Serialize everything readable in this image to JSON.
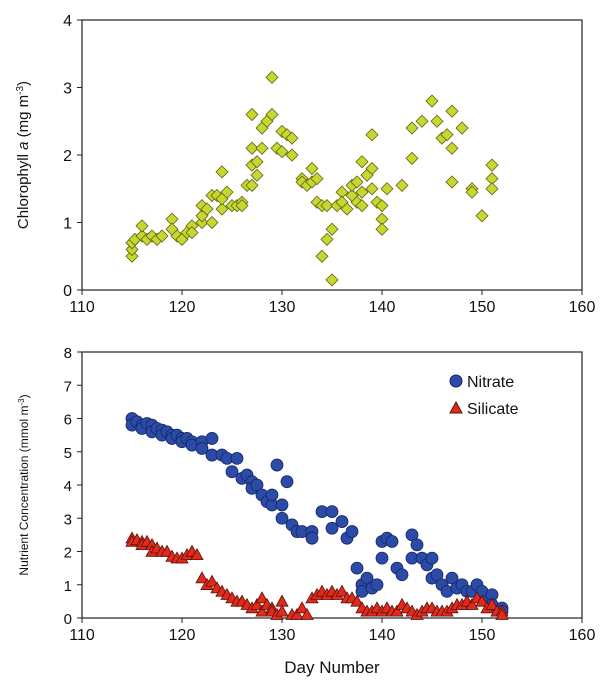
{
  "chart_data": [
    {
      "type": "scatter",
      "ylabel": "Chlorophyll a (mg m-3)",
      "ylabel_parts": [
        "Chlorophyll ",
        "a",
        " (mg m",
        "-3",
        ")"
      ],
      "xlabel": "",
      "xlim": [
        110,
        160
      ],
      "ylim": [
        0,
        4
      ],
      "x_ticks": [
        110,
        120,
        130,
        140,
        150,
        160
      ],
      "y_ticks": [
        0,
        1,
        2,
        3,
        4
      ],
      "grid": false,
      "series": [
        {
          "marker": "diamond",
          "color": "#c8d630",
          "stroke": "#5a6410",
          "points": [
            [
              115,
              0.5
            ],
            [
              115,
              0.6
            ],
            [
              115,
              0.7
            ],
            [
              115.3,
              0.75
            ],
            [
              116,
              0.8
            ],
            [
              116,
              0.95
            ],
            [
              116.5,
              0.75
            ],
            [
              117,
              0.8
            ],
            [
              117.5,
              0.75
            ],
            [
              118,
              0.8
            ],
            [
              119,
              1.05
            ],
            [
              119,
              0.9
            ],
            [
              119.5,
              0.8
            ],
            [
              120,
              0.75
            ],
            [
              120.5,
              0.85
            ],
            [
              121,
              0.95
            ],
            [
              121,
              0.85
            ],
            [
              122,
              1.0
            ],
            [
              122,
              1.1
            ],
            [
              122,
              1.25
            ],
            [
              122.5,
              1.2
            ],
            [
              123,
              1.0
            ],
            [
              123,
              1.4
            ],
            [
              123.5,
              1.4
            ],
            [
              124,
              1.2
            ],
            [
              124,
              1.75
            ],
            [
              124,
              1.35
            ],
            [
              124.5,
              1.45
            ],
            [
              125,
              1.25
            ],
            [
              125.5,
              1.25
            ],
            [
              126,
              1.3
            ],
            [
              126,
              1.25
            ],
            [
              126.5,
              1.55
            ],
            [
              127,
              1.55
            ],
            [
              127,
              1.85
            ],
            [
              127,
              2.1
            ],
            [
              127,
              2.6
            ],
            [
              127.5,
              1.7
            ],
            [
              127.5,
              1.9
            ],
            [
              128,
              2.1
            ],
            [
              128,
              2.4
            ],
            [
              128.5,
              2.5
            ],
            [
              129,
              2.6
            ],
            [
              129,
              3.15
            ],
            [
              129.5,
              2.1
            ],
            [
              130,
              2.35
            ],
            [
              130,
              2.05
            ],
            [
              130.5,
              2.3
            ],
            [
              131,
              2.25
            ],
            [
              131,
              2.0
            ],
            [
              132,
              1.65
            ],
            [
              132,
              1.6
            ],
            [
              132.5,
              1.55
            ],
            [
              133,
              1.8
            ],
            [
              133,
              1.6
            ],
            [
              133.5,
              1.3
            ],
            [
              133.5,
              1.65
            ],
            [
              134,
              1.25
            ],
            [
              134,
              0.5
            ],
            [
              134.5,
              0.75
            ],
            [
              134.5,
              1.25
            ],
            [
              135,
              0.15
            ],
            [
              135,
              0.9
            ],
            [
              135.5,
              1.25
            ],
            [
              136,
              1.45
            ],
            [
              136,
              1.3
            ],
            [
              136.5,
              1.2
            ],
            [
              137,
              1.4
            ],
            [
              137,
              1.55
            ],
            [
              137.5,
              1.6
            ],
            [
              137.5,
              1.3
            ],
            [
              138,
              1.9
            ],
            [
              138,
              1.45
            ],
            [
              138,
              1.25
            ],
            [
              138.5,
              1.7
            ],
            [
              139,
              2.3
            ],
            [
              139,
              1.5
            ],
            [
              139,
              1.8
            ],
            [
              139.5,
              1.3
            ],
            [
              140,
              1.05
            ],
            [
              140,
              0.9
            ],
            [
              140,
              1.25
            ],
            [
              140.5,
              1.5
            ],
            [
              142,
              1.55
            ],
            [
              143,
              1.95
            ],
            [
              143,
              2.4
            ],
            [
              144,
              2.5
            ],
            [
              145,
              2.8
            ],
            [
              145.5,
              2.5
            ],
            [
              146,
              2.25
            ],
            [
              146.5,
              2.3
            ],
            [
              147,
              2.65
            ],
            [
              147,
              2.1
            ],
            [
              147,
              1.6
            ],
            [
              148,
              2.4
            ],
            [
              149,
              1.5
            ],
            [
              149,
              1.45
            ],
            [
              150,
              1.1
            ],
            [
              151,
              1.85
            ],
            [
              151,
              1.65
            ],
            [
              151,
              1.5
            ]
          ]
        }
      ]
    },
    {
      "type": "scatter",
      "ylabel": "Nutrient Concentration (mmol m-3)",
      "ylabel_parts": [
        "Nutrient Concentration (mmol m",
        "-3",
        ")"
      ],
      "xlabel": "Day Number",
      "xlim": [
        110,
        160
      ],
      "ylim": [
        0,
        8
      ],
      "x_ticks": [
        110,
        120,
        130,
        140,
        150,
        160
      ],
      "y_ticks": [
        0,
        1,
        2,
        3,
        4,
        5,
        6,
        7,
        8
      ],
      "grid": false,
      "legend": "top-right",
      "series": [
        {
          "name": "Nitrate",
          "marker": "circle",
          "color": "#2c4aa8",
          "stroke": "#142660",
          "points": [
            [
              115,
              6.0
            ],
            [
              115,
              5.8
            ],
            [
              115.5,
              5.9
            ],
            [
              116,
              5.8
            ],
            [
              116,
              5.7
            ],
            [
              116.5,
              5.85
            ],
            [
              117,
              5.8
            ],
            [
              117,
              5.6
            ],
            [
              117.5,
              5.7
            ],
            [
              118,
              5.65
            ],
            [
              118,
              5.5
            ],
            [
              118.5,
              5.6
            ],
            [
              119,
              5.5
            ],
            [
              119,
              5.4
            ],
            [
              119.5,
              5.5
            ],
            [
              120,
              5.4
            ],
            [
              120,
              5.3
            ],
            [
              120.5,
              5.4
            ],
            [
              121,
              5.3
            ],
            [
              121,
              5.2
            ],
            [
              122,
              5.3
            ],
            [
              122,
              5.1
            ],
            [
              123,
              5.4
            ],
            [
              123,
              4.9
            ],
            [
              124,
              4.9
            ],
            [
              124.5,
              4.8
            ],
            [
              125,
              4.4
            ],
            [
              125.5,
              4.8
            ],
            [
              126,
              4.2
            ],
            [
              126.5,
              4.3
            ],
            [
              127,
              4.1
            ],
            [
              127,
              3.9
            ],
            [
              127.5,
              4.0
            ],
            [
              128,
              3.7
            ],
            [
              128.5,
              3.5
            ],
            [
              129,
              3.4
            ],
            [
              129,
              3.7
            ],
            [
              129.5,
              4.6
            ],
            [
              130,
              3.4
            ],
            [
              130,
              3.0
            ],
            [
              130.5,
              4.1
            ],
            [
              131,
              2.8
            ],
            [
              131.5,
              2.6
            ],
            [
              132,
              2.6
            ],
            [
              133,
              2.6
            ],
            [
              133,
              2.4
            ],
            [
              134,
              3.2
            ],
            [
              135,
              3.2
            ],
            [
              135,
              2.7
            ],
            [
              136,
              2.9
            ],
            [
              136.5,
              2.4
            ],
            [
              137,
              2.6
            ],
            [
              137.5,
              1.5
            ],
            [
              138,
              1.0
            ],
            [
              138,
              0.8
            ],
            [
              138.5,
              1.2
            ],
            [
              139,
              0.9
            ],
            [
              139.5,
              1.0
            ],
            [
              140,
              2.3
            ],
            [
              140,
              1.8
            ],
            [
              140.5,
              2.4
            ],
            [
              141,
              2.3
            ],
            [
              141.5,
              1.5
            ],
            [
              142,
              1.3
            ],
            [
              143,
              2.5
            ],
            [
              143,
              1.8
            ],
            [
              143.5,
              2.2
            ],
            [
              144,
              1.8
            ],
            [
              144.5,
              1.6
            ],
            [
              145,
              1.8
            ],
            [
              145,
              1.2
            ],
            [
              145.5,
              1.3
            ],
            [
              146,
              1.0
            ],
            [
              146.5,
              0.8
            ],
            [
              147,
              1.2
            ],
            [
              147.5,
              0.9
            ],
            [
              148,
              1.0
            ],
            [
              148.5,
              0.8
            ],
            [
              149,
              0.8
            ],
            [
              149.5,
              1.0
            ],
            [
              150,
              0.8
            ],
            [
              150.5,
              0.5
            ],
            [
              151,
              0.7
            ],
            [
              151,
              0.4
            ],
            [
              152,
              0.3
            ],
            [
              152,
              0.2
            ]
          ]
        },
        {
          "name": "Silicate",
          "marker": "triangle",
          "color": "#e02a1c",
          "stroke": "#5a100a",
          "points": [
            [
              115,
              2.4
            ],
            [
              115,
              2.3
            ],
            [
              115.5,
              2.35
            ],
            [
              116,
              2.3
            ],
            [
              116,
              2.2
            ],
            [
              116.5,
              2.3
            ],
            [
              117,
              2.2
            ],
            [
              117,
              2.0
            ],
            [
              117.5,
              2.1
            ],
            [
              118,
              2.0
            ],
            [
              118.5,
              2.0
            ],
            [
              119,
              1.85
            ],
            [
              119.5,
              1.8
            ],
            [
              120,
              1.8
            ],
            [
              120.5,
              1.9
            ],
            [
              121,
              2.0
            ],
            [
              121.5,
              1.9
            ],
            [
              122,
              1.2
            ],
            [
              122.5,
              1.0
            ],
            [
              123,
              1.1
            ],
            [
              123.5,
              0.9
            ],
            [
              124,
              0.8
            ],
            [
              124.5,
              0.7
            ],
            [
              125,
              0.6
            ],
            [
              125.5,
              0.5
            ],
            [
              126,
              0.5
            ],
            [
              126.5,
              0.4
            ],
            [
              127,
              0.3
            ],
            [
              127.5,
              0.4
            ],
            [
              128,
              0.6
            ],
            [
              128,
              0.2
            ],
            [
              128.5,
              0.4
            ],
            [
              129,
              0.3
            ],
            [
              129,
              0.2
            ],
            [
              129.5,
              0.1
            ],
            [
              130,
              0.5
            ],
            [
              130,
              0.2
            ],
            [
              131,
              0.1
            ],
            [
              131.5,
              0.1
            ],
            [
              132,
              0.3
            ],
            [
              132.5,
              0.1
            ],
            [
              133,
              0.6
            ],
            [
              133.5,
              0.7
            ],
            [
              134,
              0.8
            ],
            [
              134.5,
              0.7
            ],
            [
              135,
              0.8
            ],
            [
              135.5,
              0.7
            ],
            [
              136,
              0.8
            ],
            [
              136.5,
              0.6
            ],
            [
              137,
              0.6
            ],
            [
              137.5,
              0.5
            ],
            [
              138,
              0.3
            ],
            [
              138.5,
              0.2
            ],
            [
              139,
              0.2
            ],
            [
              139.5,
              0.3
            ],
            [
              140,
              0.2
            ],
            [
              140.5,
              0.3
            ],
            [
              141,
              0.2
            ],
            [
              141.5,
              0.2
            ],
            [
              142,
              0.4
            ],
            [
              142.5,
              0.3
            ],
            [
              143,
              0.2
            ],
            [
              143.5,
              0.1
            ],
            [
              144,
              0.2
            ],
            [
              144.5,
              0.3
            ],
            [
              145,
              0.3
            ],
            [
              145.5,
              0.2
            ],
            [
              146,
              0.2
            ],
            [
              146.5,
              0.2
            ],
            [
              147,
              0.3
            ],
            [
              147.5,
              0.4
            ],
            [
              148,
              0.4
            ],
            [
              148.5,
              0.5
            ],
            [
              149,
              0.4
            ],
            [
              149.5,
              0.6
            ],
            [
              150,
              0.5
            ],
            [
              150.5,
              0.3
            ],
            [
              151,
              0.4
            ],
            [
              151.5,
              0.2
            ],
            [
              152,
              0.2
            ],
            [
              152,
              0.1
            ]
          ]
        }
      ]
    }
  ]
}
